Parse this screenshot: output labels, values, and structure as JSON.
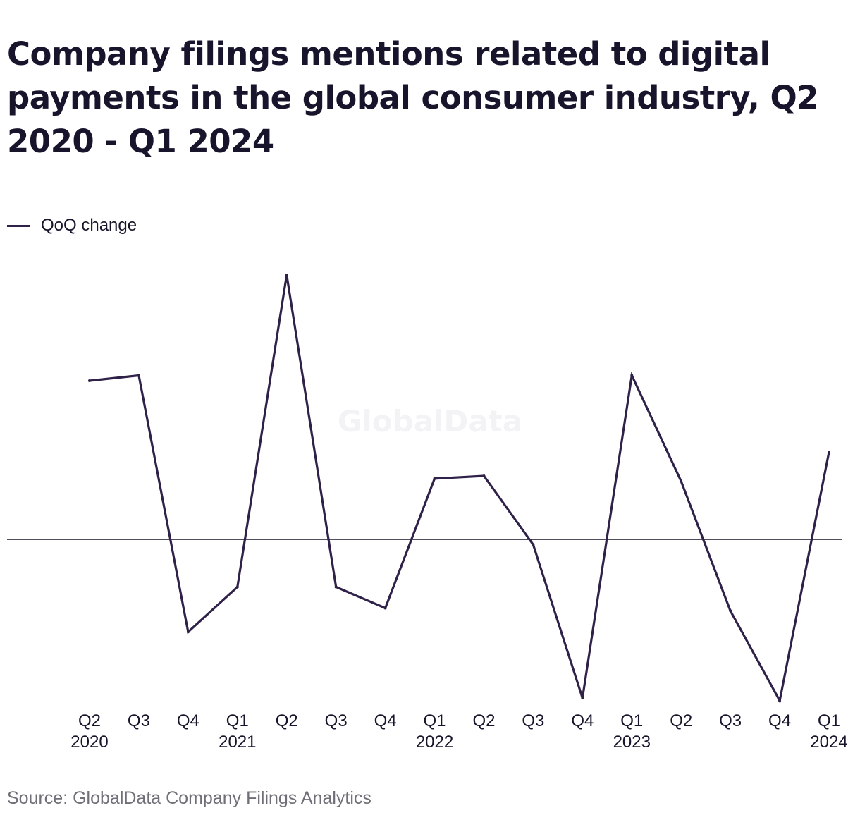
{
  "title": "Company filings mentions related to digital payments in the global consumer industry, Q2 2020 - Q1 2024",
  "watermark": "GlobalData",
  "source": "Source: GlobalData Company Filings Analytics",
  "colors": {
    "line": "#2f2147",
    "zero_line": "#17142b",
    "text": "#17142b",
    "source_text": "#6f6f78"
  },
  "chart_data": {
    "type": "line",
    "title": "Company filings mentions related to digital payments in the global consumer industry, Q2 2020 - Q1 2024",
    "xlabel": "",
    "ylabel": "",
    "legend": "top-left",
    "grid": false,
    "ylim": [
      -0.6,
      1.0
    ],
    "categories": [
      {
        "quarter": "Q2",
        "year": "2020"
      },
      {
        "quarter": "Q3",
        "year": ""
      },
      {
        "quarter": "Q4",
        "year": ""
      },
      {
        "quarter": "Q1",
        "year": "2021"
      },
      {
        "quarter": "Q2",
        "year": ""
      },
      {
        "quarter": "Q3",
        "year": ""
      },
      {
        "quarter": "Q4",
        "year": ""
      },
      {
        "quarter": "Q1",
        "year": "2022"
      },
      {
        "quarter": "Q2",
        "year": ""
      },
      {
        "quarter": "Q3",
        "year": ""
      },
      {
        "quarter": "Q4",
        "year": ""
      },
      {
        "quarter": "Q1",
        "year": "2023"
      },
      {
        "quarter": "Q2",
        "year": ""
      },
      {
        "quarter": "Q3",
        "year": ""
      },
      {
        "quarter": "Q4",
        "year": ""
      },
      {
        "quarter": "Q1",
        "year": "2024"
      }
    ],
    "series": [
      {
        "name": "QoQ change",
        "values": [
          0.6,
          0.62,
          -0.35,
          -0.18,
          1.0,
          -0.18,
          -0.26,
          0.23,
          0.24,
          -0.02,
          -0.6,
          0.62,
          0.22,
          -0.27,
          -0.61,
          0.33
        ]
      }
    ]
  }
}
